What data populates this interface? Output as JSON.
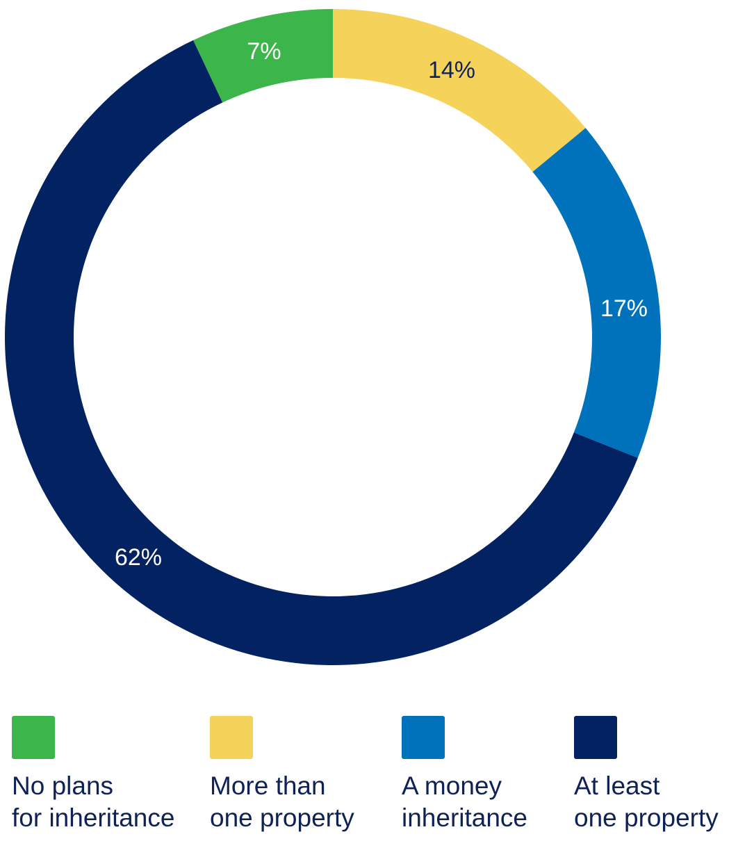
{
  "chart_data": {
    "type": "pie",
    "variant": "donut",
    "title": "",
    "slices": [
      {
        "name": "No plans for inheritance",
        "label_line1": "No plans",
        "label_line2": "for inheritance",
        "value": 7,
        "label": "7%",
        "color": "#3cb54a",
        "text_color": "#ffffff"
      },
      {
        "name": "More than one property",
        "label_line1": "More than",
        "label_line2": "one property",
        "value": 14,
        "label": "14%",
        "color": "#f5d25a",
        "text_color": "#0f2258"
      },
      {
        "name": "A money inheritance",
        "label_line1": "A money",
        "label_line2": "inheritance",
        "value": 17,
        "label": "17%",
        "color": "#0072bc",
        "text_color": "#ffffff"
      },
      {
        "name": "At least one property",
        "label_line1": "At least",
        "label_line2": "one property",
        "value": 62,
        "label": "62%",
        "color": "#032261",
        "text_color": "#ffffff"
      }
    ],
    "legend_position": "bottom"
  }
}
